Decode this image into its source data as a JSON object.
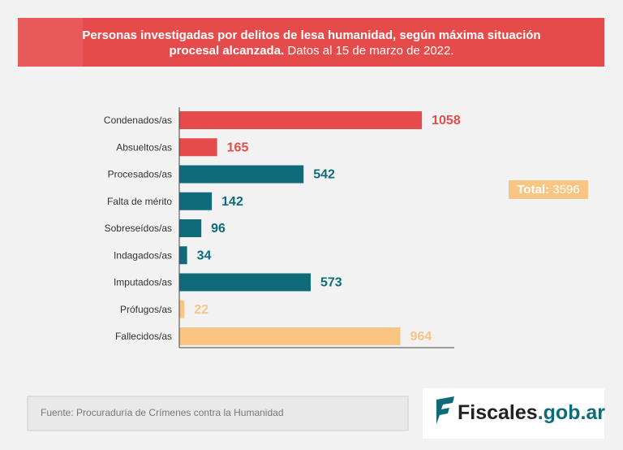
{
  "chart_data": {
    "type": "bar",
    "orientation": "horizontal",
    "title": "Personas investigadas por delitos de lesa humanidad, según máxima situación",
    "title_line2": "procesal alcanzada.",
    "subtitle": "Datos al 15 de marzo de 2022.",
    "categories": [
      "Condenados/as",
      "Absueltos/as",
      "Procesados/as",
      "Falta de mérito",
      "Sobreseídos/as",
      "Indagados/as",
      "Imputados/as",
      "Prófugos/as",
      "Fallecidos/as"
    ],
    "values": [
      1058,
      165,
      542,
      142,
      96,
      34,
      573,
      22,
      964
    ],
    "colors": [
      "#e54b4b",
      "#e54b4b",
      "#0f6b7a",
      "#0f6b7a",
      "#0f6b7a",
      "#0f6b7a",
      "#0f6b7a",
      "#f8c583",
      "#f8c583"
    ],
    "xlim": [
      0,
      1100
    ],
    "total_label": "Total:",
    "total": 3596,
    "source": "Fuente: Procuraduría de Crímenes contra la Humanidad",
    "logo_main": "Fiscales",
    "logo_domain": ".gob.ar"
  }
}
